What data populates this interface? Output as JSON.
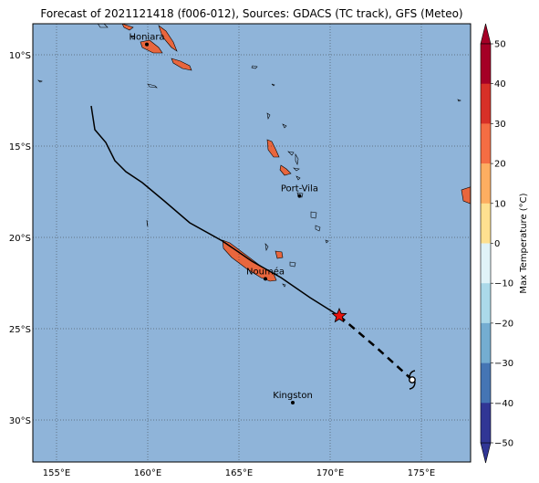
{
  "title": "Forecast of 2021121418 (f006-012), Sources: GDACS (TC track), GFS (Meteo)",
  "map": {
    "lon_range": [
      153.7,
      177.7
    ],
    "lat_range": [
      -32.3,
      -8.3
    ],
    "lon_ticks": [
      {
        "value": 155,
        "label": "155°E"
      },
      {
        "value": 160,
        "label": "160°E"
      },
      {
        "value": 165,
        "label": "165°E"
      },
      {
        "value": 170,
        "label": "170°E"
      },
      {
        "value": 175,
        "label": "175°E"
      }
    ],
    "lat_ticks": [
      {
        "value": -10,
        "label": "10°S"
      },
      {
        "value": -15,
        "label": "15°S"
      },
      {
        "value": -20,
        "label": "20°S"
      },
      {
        "value": -25,
        "label": "25°S"
      },
      {
        "value": -30,
        "label": "30°S"
      }
    ],
    "ocean_color": "#8fb4d9",
    "land_color": "#e8663d",
    "grid": true,
    "cities": [
      {
        "name": "Honiara",
        "lon": 159.95,
        "lat": -9.43
      },
      {
        "name": "Port-Vila",
        "lon": 168.32,
        "lat": -17.73
      },
      {
        "name": "Nouméa",
        "lon": 166.45,
        "lat": -22.27
      },
      {
        "name": "Kingston",
        "lon": 167.95,
        "lat": -29.05
      }
    ],
    "track_observed": [
      [
        156.9,
        -12.8
      ],
      [
        157.1,
        -14.1
      ],
      [
        157.7,
        -14.8
      ],
      [
        158.2,
        -15.8
      ],
      [
        158.8,
        -16.4
      ],
      [
        159.7,
        -17.0
      ],
      [
        160.9,
        -18.0
      ],
      [
        162.3,
        -19.2
      ],
      [
        164.1,
        -20.2
      ],
      [
        165.7,
        -21.3
      ],
      [
        167.3,
        -22.2
      ],
      [
        168.9,
        -23.3
      ],
      [
        170.5,
        -24.3
      ]
    ],
    "track_forecast": [
      [
        170.5,
        -24.3
      ],
      [
        172.5,
        -26.0
      ],
      [
        174.5,
        -27.8
      ]
    ],
    "current_position": {
      "lon": 170.5,
      "lat": -24.3
    },
    "forecast_symbol": {
      "lon": 174.5,
      "lat": -27.8
    }
  },
  "colorbar": {
    "label": "Max Temperature (°C)",
    "ticks": [
      "50",
      "40",
      "30",
      "20",
      "10",
      "0",
      "−10",
      "−20",
      "−30",
      "−40",
      "−50"
    ],
    "colors": [
      "#a50026",
      "#d73027",
      "#f46d43",
      "#fdae61",
      "#fee090",
      "#ffffff",
      "#e0f3f8",
      "#abd9e9",
      "#74add1",
      "#4575b4",
      "#313695"
    ]
  }
}
